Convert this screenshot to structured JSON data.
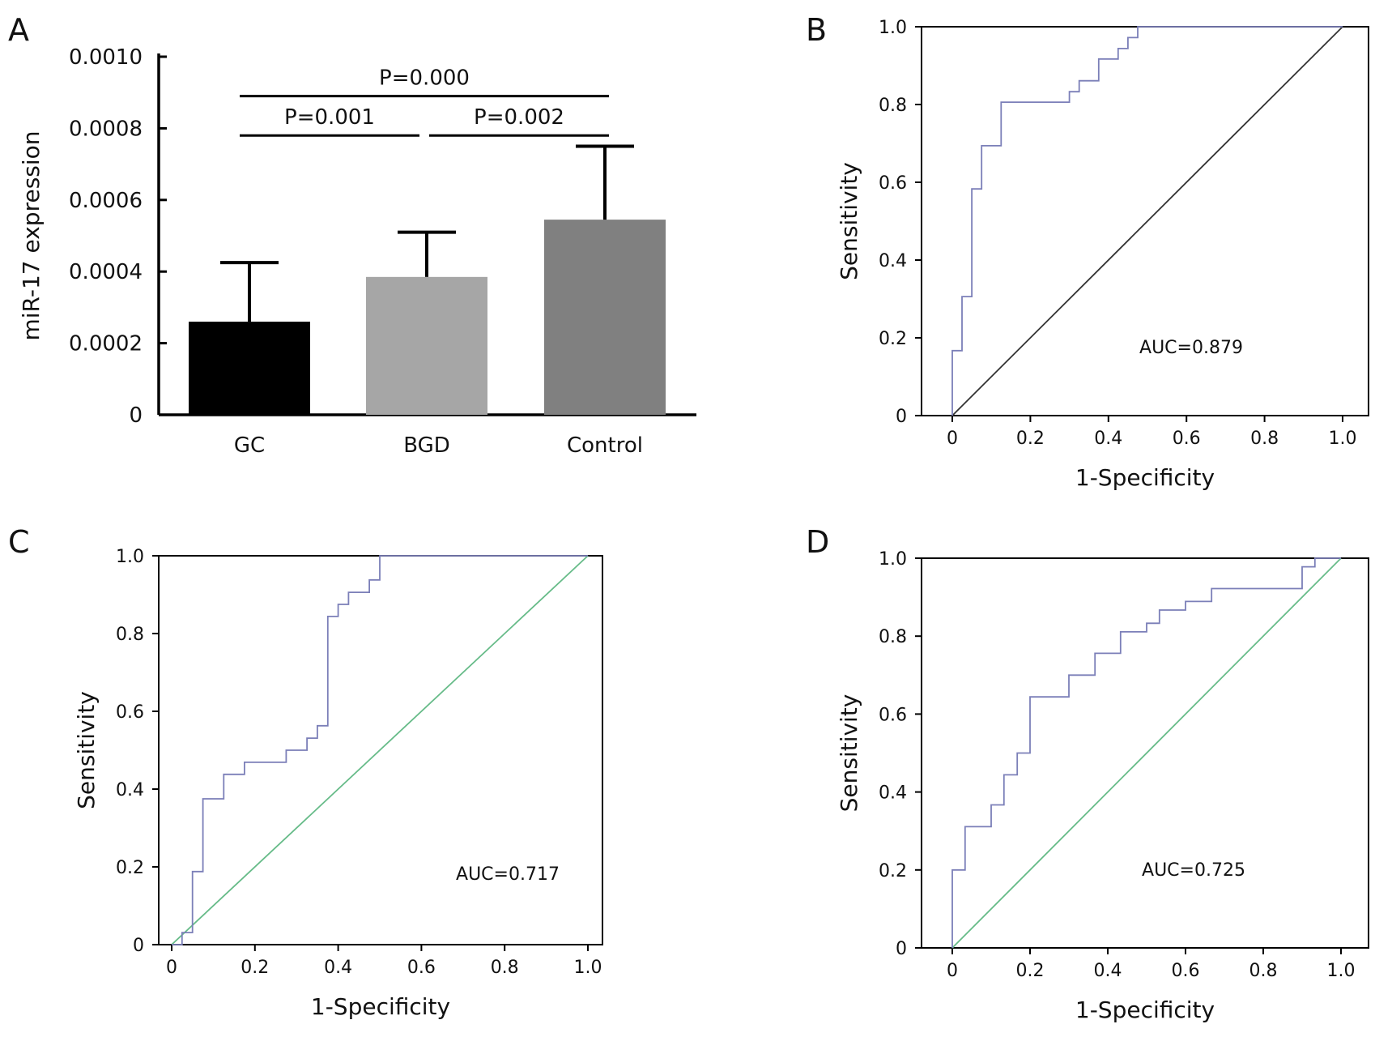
{
  "chart_data": [
    {
      "panel": "A",
      "type": "bar",
      "categories": [
        "GC",
        "BGD",
        "Control"
      ],
      "values": [
        0.00026,
        0.000385,
        0.000545
      ],
      "errors": [
        0.000165,
        0.000125,
        0.000205
      ],
      "colors": [
        "#000000",
        "#a6a6a6",
        "#808080"
      ],
      "ylabel": "miR-17 expression",
      "ylim": [
        0,
        0.001
      ],
      "yticks": [
        0,
        0.0002,
        0.0004,
        0.0006,
        0.0008,
        0.001
      ],
      "ytick_labels": [
        "0",
        "0.0002",
        "0.0004",
        "0.0006",
        "0.0008",
        "0.0010"
      ],
      "annotations": [
        {
          "text": "P=0.000",
          "from": 0,
          "to": 2,
          "y": 0.00089
        },
        {
          "text": "P=0.001",
          "from": 0,
          "to": 1,
          "y": 0.00078
        },
        {
          "text": "P=0.002",
          "from": 1,
          "to": 2,
          "y": 0.00078
        }
      ]
    },
    {
      "panel": "B",
      "type": "line",
      "xlabel": "1-Specificity",
      "ylabel": "Sensitivity",
      "xlim": [
        0,
        1
      ],
      "ylim": [
        0,
        1
      ],
      "xtick_labels": [
        "0",
        "0.2",
        "0.4",
        "0.6",
        "0.8",
        "1.0"
      ],
      "ytick_labels": [
        "0",
        "0.2",
        "0.4",
        "0.6",
        "0.8",
        "1.0"
      ],
      "annotation": "AUC=0.879",
      "reference_color": "#333333",
      "roc_color": "#7b7fb8",
      "roc": [
        [
          0,
          0
        ],
        [
          0,
          0.167
        ],
        [
          0.025,
          0.167
        ],
        [
          0.025,
          0.306
        ],
        [
          0.05,
          0.306
        ],
        [
          0.05,
          0.583
        ],
        [
          0.075,
          0.583
        ],
        [
          0.075,
          0.611
        ],
        [
          0.075,
          0.694
        ],
        [
          0.125,
          0.694
        ],
        [
          0.125,
          0.806
        ],
        [
          0.3,
          0.806
        ],
        [
          0.3,
          0.833
        ],
        [
          0.325,
          0.833
        ],
        [
          0.325,
          0.861
        ],
        [
          0.375,
          0.861
        ],
        [
          0.375,
          0.917
        ],
        [
          0.425,
          0.917
        ],
        [
          0.425,
          0.944
        ],
        [
          0.45,
          0.944
        ],
        [
          0.45,
          0.972
        ],
        [
          0.475,
          0.972
        ],
        [
          0.475,
          1.0
        ],
        [
          1.0,
          1.0
        ]
      ]
    },
    {
      "panel": "C",
      "type": "line",
      "xlabel": "1-Specificity",
      "ylabel": "Sensitivity",
      "xlim": [
        0,
        1
      ],
      "ylim": [
        0,
        1
      ],
      "xtick_labels": [
        "0",
        "0.2",
        "0.4",
        "0.6",
        "0.8",
        "1.0"
      ],
      "ytick_labels": [
        "0",
        "0.2",
        "0.4",
        "0.6",
        "0.8",
        "1.0"
      ],
      "annotation": "AUC=0.717",
      "reference_color": "#66bb88",
      "roc_color": "#7b7fb8",
      "roc": [
        [
          0,
          0
        ],
        [
          0.025,
          0
        ],
        [
          0.025,
          0.031
        ],
        [
          0.05,
          0.031
        ],
        [
          0.05,
          0.188
        ],
        [
          0.075,
          0.188
        ],
        [
          0.075,
          0.375
        ],
        [
          0.125,
          0.375
        ],
        [
          0.125,
          0.438
        ],
        [
          0.175,
          0.438
        ],
        [
          0.175,
          0.469
        ],
        [
          0.275,
          0.469
        ],
        [
          0.275,
          0.5
        ],
        [
          0.325,
          0.5
        ],
        [
          0.325,
          0.531
        ],
        [
          0.35,
          0.531
        ],
        [
          0.35,
          0.563
        ],
        [
          0.375,
          0.563
        ],
        [
          0.375,
          0.844
        ],
        [
          0.4,
          0.844
        ],
        [
          0.4,
          0.875
        ],
        [
          0.425,
          0.875
        ],
        [
          0.425,
          0.906
        ],
        [
          0.475,
          0.906
        ],
        [
          0.475,
          0.938
        ],
        [
          0.5,
          0.938
        ],
        [
          0.5,
          1.0
        ],
        [
          1.0,
          1.0
        ]
      ]
    },
    {
      "panel": "D",
      "type": "line",
      "xlabel": "1-Specificity",
      "ylabel": "Sensitivity",
      "xlim": [
        0,
        1
      ],
      "ylim": [
        0,
        1
      ],
      "xtick_labels": [
        "0",
        "0.2",
        "0.4",
        "0.6",
        "0.8",
        "1.0"
      ],
      "ytick_labels": [
        "0",
        "0.2",
        "0.4",
        "0.6",
        "0.8",
        "1.0"
      ],
      "annotation": "AUC=0.725",
      "reference_color": "#66bb88",
      "roc_color": "#7b7fb8",
      "roc": [
        [
          0,
          0
        ],
        [
          0,
          0.2
        ],
        [
          0.033,
          0.2
        ],
        [
          0.033,
          0.311
        ],
        [
          0.1,
          0.311
        ],
        [
          0.1,
          0.367
        ],
        [
          0.133,
          0.367
        ],
        [
          0.133,
          0.444
        ],
        [
          0.167,
          0.444
        ],
        [
          0.167,
          0.5
        ],
        [
          0.2,
          0.5
        ],
        [
          0.2,
          0.644
        ],
        [
          0.3,
          0.644
        ],
        [
          0.3,
          0.7
        ],
        [
          0.367,
          0.7
        ],
        [
          0.367,
          0.756
        ],
        [
          0.433,
          0.756
        ],
        [
          0.433,
          0.811
        ],
        [
          0.5,
          0.811
        ],
        [
          0.5,
          0.833
        ],
        [
          0.533,
          0.833
        ],
        [
          0.533,
          0.867
        ],
        [
          0.6,
          0.867
        ],
        [
          0.6,
          0.889
        ],
        [
          0.667,
          0.889
        ],
        [
          0.667,
          0.922
        ],
        [
          0.9,
          0.922
        ],
        [
          0.9,
          0.978
        ],
        [
          0.933,
          0.978
        ],
        [
          0.933,
          1.0
        ],
        [
          1.0,
          1.0
        ]
      ]
    }
  ]
}
